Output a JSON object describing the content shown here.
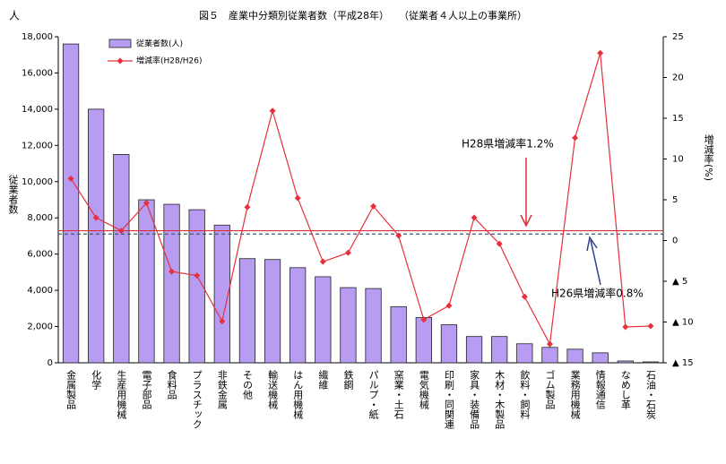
{
  "chart_data": {
    "type": "bar_line",
    "title": "図５　産業中分類別従業者数（平成28年）　　（従業者４人以上の事業所）",
    "y_unit": "人",
    "y_label": "従業者数",
    "y2_label": "増減率(%)",
    "categories": [
      "金属製品",
      "化学",
      "生産用機械",
      "電子部品",
      "食料品",
      "プラスチック",
      "非鉄金属",
      "その他",
      "輸送機械",
      "はん用機械",
      "繊維",
      "鉄鋼",
      "パルプ・紙",
      "窯業・土石",
      "電気機械",
      "印刷・同関連",
      "家具・装備品",
      "木材・木製品",
      "飲料・飼料",
      "ゴム製品",
      "業務用機械",
      "情報通信",
      "なめし革",
      "石油・石炭"
    ],
    "series": [
      {
        "name": "従業者数(人)",
        "kind": "bar",
        "axis": "y",
        "color": "#b79cf2",
        "values": [
          17600,
          14000,
          11500,
          9000,
          8750,
          8450,
          7600,
          5750,
          5700,
          5250,
          4750,
          4150,
          4100,
          3100,
          2500,
          2100,
          1450,
          1450,
          1050,
          850,
          750,
          550,
          100,
          50
        ]
      },
      {
        "name": "増減率(H28/H26)",
        "kind": "line",
        "axis": "y2",
        "color": "#e6303a",
        "values": [
          7.6,
          2.8,
          1.2,
          4.6,
          -3.8,
          -4.3,
          -9.9,
          4.1,
          15.9,
          5.2,
          -2.6,
          -1.5,
          4.2,
          0.6,
          -9.7,
          -8.0,
          2.8,
          -0.4,
          -6.9,
          -12.7,
          12.6,
          23.0,
          -10.6,
          -10.5
        ]
      }
    ],
    "reference_lines": [
      {
        "label": "H28県増減率1.2%",
        "value": 1.2,
        "axis": "y2",
        "color": "#d9333a",
        "style": "solid"
      },
      {
        "label": "H26県増減率0.8%",
        "value": 0.8,
        "axis": "y2",
        "color": "#3a5a7a",
        "style": "dashed"
      }
    ],
    "ylim": [
      0,
      18000
    ],
    "yticks": [
      0,
      {
        "value": 2000,
        "label": "2,000"
      },
      {
        "value": 4000,
        "label": "4,000"
      },
      {
        "value": 6000,
        "label": "6,000"
      },
      {
        "value": 8000,
        "label": "8,000"
      },
      {
        "value": 10000,
        "label": "10,000"
      },
      {
        "value": 12000,
        "label": "12,000"
      },
      {
        "value": 14000,
        "label": "14,000"
      },
      {
        "value": 16000,
        "label": "16,000"
      },
      {
        "value": 18000,
        "label": "18,000"
      }
    ],
    "y2lim": [
      -15,
      25
    ],
    "y2ticks": [
      {
        "value": -15,
        "label": "▲ 15"
      },
      {
        "value": -10,
        "label": "▲ 10"
      },
      {
        "value": -5,
        "label": "▲ 5"
      },
      0,
      5,
      10,
      15,
      20,
      25
    ],
    "grid": false
  }
}
